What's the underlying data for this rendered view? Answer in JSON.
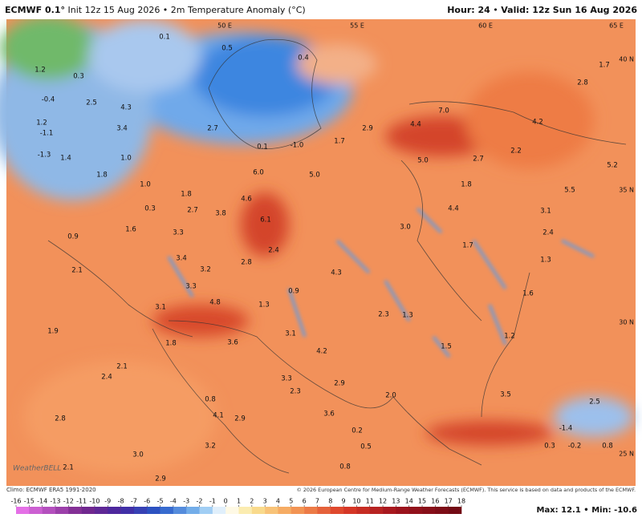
{
  "header": {
    "model": "ECMWF 0.1°",
    "run": "Init 12z 15 Aug 2026 • 2m Temperature Anomaly (°C)",
    "hour": "Hour: 24",
    "valid": "Valid: 12z Sun 16 Aug 2026"
  },
  "map": {
    "longitudes": [
      "50 E",
      "55 E",
      "60 E",
      "65 E"
    ],
    "latitudes": [
      "40 N",
      "35 N",
      "30 N",
      "25 N"
    ],
    "labels": [
      "0.1",
      "0.5",
      "0.4",
      "1.7",
      "2.8",
      "1.2",
      "0.3",
      "-0.4",
      "2.5",
      "4.3",
      "7.0",
      "1.2",
      "3.4",
      "-1.1",
      "2.7",
      "2.9",
      "4.4",
      "4.2",
      "0.1",
      "-1.0",
      "1.7",
      "2.2",
      "-1.3",
      "1.4",
      "1.0",
      "5.0",
      "2.7",
      "5.2",
      "6.0",
      "5.0",
      "1.8",
      "1.0",
      "1.8",
      "5.5",
      "1.8",
      "4.6",
      "0.3",
      "2.7",
      "3.8",
      "6.1",
      "4.4",
      "3.1",
      "1.6",
      "3.3",
      "3.0",
      "2.4",
      "0.9",
      "3.4",
      "2.8",
      "2.4",
      "1.7",
      "1.3",
      "2.1",
      "3.2",
      "4.3",
      "3.3",
      "0.9",
      "1.6",
      "4.8",
      "1.3",
      "3.1",
      "2.3",
      "1.3",
      "1.9",
      "3.1",
      "3.6",
      "1.2",
      "1.8",
      "4.2",
      "1.5",
      "2.1",
      "2.4",
      "3.3",
      "2.9",
      "2.3",
      "2.0",
      "3.5",
      "2.5",
      "0.8",
      "3.6",
      "4.1",
      "2.9",
      "2.8",
      "0.2",
      "-1.4",
      "3.2",
      "0.5",
      "0.3",
      "-0.2",
      "0.8",
      "3.0",
      "2.1",
      "0.8",
      "2.9"
    ],
    "watermark": "WeatherBELL"
  },
  "footer": {
    "climo": "Climo: ECMWF ERA5 1991-2020",
    "copyright": "© 2026 European Centre for Medium-Range Weather Forecasts (ECMWF). This service is based on data and products of the ECMWF."
  },
  "colorbar": {
    "ticks": [
      -16,
      -15,
      -14,
      -13,
      -12,
      -11,
      -10,
      -9,
      -8,
      -7,
      -6,
      -5,
      -4,
      -3,
      -2,
      -1,
      0,
      1,
      2,
      3,
      4,
      5,
      6,
      7,
      8,
      9,
      10,
      11,
      12,
      13,
      14,
      15,
      16,
      17,
      18
    ]
  },
  "stats": {
    "max_label": "Max:",
    "max": 12.1,
    "min_label": "Min:",
    "min": -10.6
  }
}
